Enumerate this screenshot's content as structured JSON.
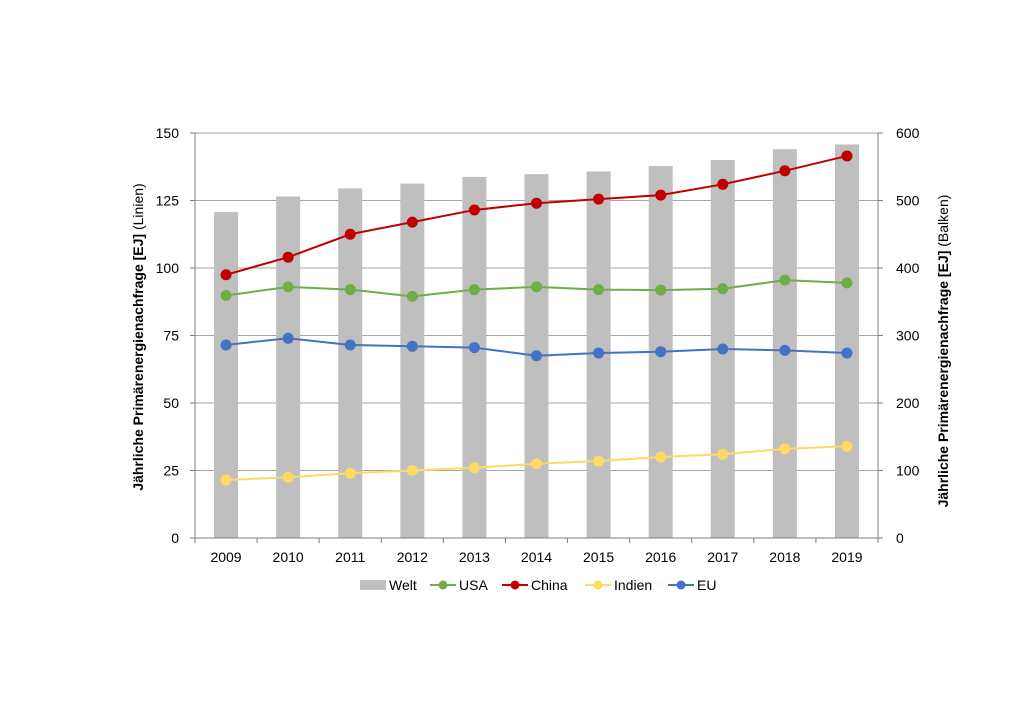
{
  "chart_data": {
    "type": "bar+line",
    "categories": [
      "2009",
      "2010",
      "2011",
      "2012",
      "2013",
      "2014",
      "2015",
      "2016",
      "2017",
      "2018",
      "2019"
    ],
    "bar_series": {
      "name": "Welt",
      "axis": "right",
      "color": "#bfbfbf",
      "values": [
        483,
        506,
        518,
        525,
        535,
        539,
        543,
        551,
        560,
        576,
        583
      ]
    },
    "line_series": [
      {
        "name": "USA",
        "axis": "left",
        "color": "#70ad47",
        "values": [
          89.8,
          93.0,
          92.0,
          89.5,
          92.0,
          93.0,
          92.0,
          91.8,
          92.3,
          95.5,
          94.5
        ]
      },
      {
        "name": "China",
        "axis": "left",
        "color": "#c00000",
        "values": [
          97.5,
          104.0,
          112.5,
          117.0,
          121.5,
          124.0,
          125.5,
          127.0,
          131.0,
          136.0,
          141.5
        ]
      },
      {
        "name": "Indien",
        "axis": "left",
        "color": "#ffd966",
        "values": [
          21.5,
          22.5,
          24.0,
          25.0,
          26.0,
          27.5,
          28.5,
          30.0,
          31.0,
          33.0,
          34.0
        ]
      },
      {
        "name": "EU",
        "axis": "left",
        "color": "#4472c4",
        "values": [
          71.5,
          74.0,
          71.5,
          71.0,
          70.5,
          67.5,
          68.5,
          69.0,
          70.0,
          69.5,
          68.5
        ]
      }
    ],
    "left_axis": {
      "label": "Jährliche Primärenergienachfrage [EJ]",
      "label_unit": "(Linien)",
      "ylim": [
        0,
        150
      ],
      "ticks": [
        "0",
        "25",
        "50",
        "75",
        "100",
        "125",
        "150"
      ]
    },
    "right_axis": {
      "label": "Jährliche Primärenergienachfrage [EJ]",
      "label_unit": "(Balken)",
      "ylim": [
        0,
        600
      ],
      "ticks": [
        "0",
        "100",
        "200",
        "300",
        "400",
        "500",
        "600"
      ]
    },
    "legend_order": [
      "Welt",
      "USA",
      "China",
      "Indien",
      "EU"
    ],
    "legend_position": "bottom",
    "grid": true
  }
}
